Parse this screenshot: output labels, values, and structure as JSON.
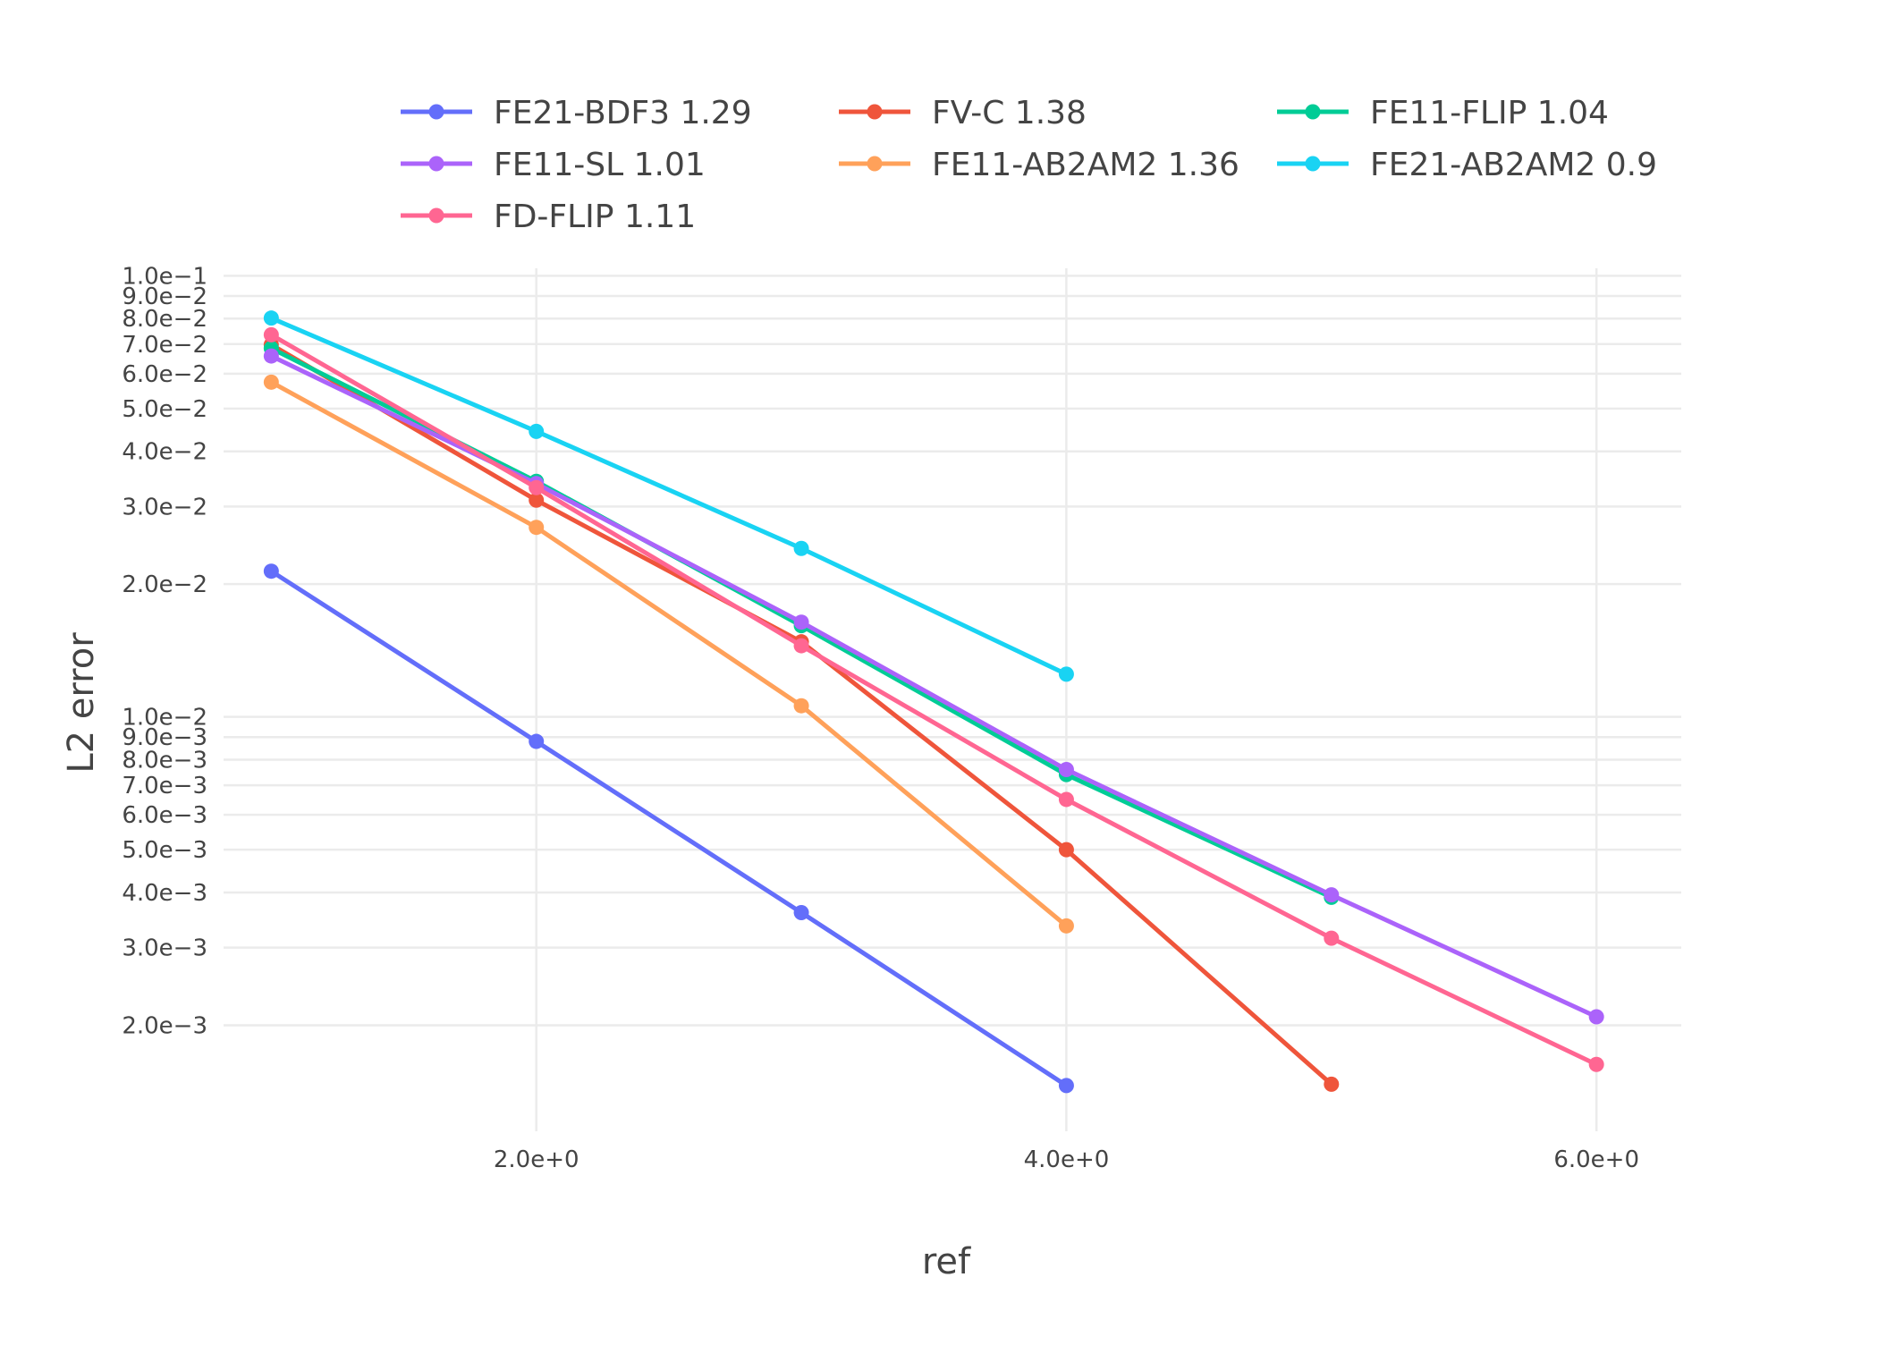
{
  "chart_data": {
    "type": "line",
    "xlabel": "ref",
    "ylabel": "L2 error",
    "x_scale": "linear",
    "y_scale": "log",
    "xlim": [
      0.82,
      6.32
    ],
    "ylim": [
      0.00115,
      0.104
    ],
    "grid": true,
    "legend_position": "top",
    "x_ticks": [
      {
        "value": 2,
        "label": "2.0e+0"
      },
      {
        "value": 4,
        "label": "4.0e+0"
      },
      {
        "value": 6,
        "label": "6.0e+0"
      }
    ],
    "y_ticks": [
      {
        "value": 0.1,
        "label": "1.0e−1"
      },
      {
        "value": 0.09,
        "label": "9.0e−2"
      },
      {
        "value": 0.08,
        "label": "8.0e−2"
      },
      {
        "value": 0.07,
        "label": "7.0e−2"
      },
      {
        "value": 0.06,
        "label": "6.0e−2"
      },
      {
        "value": 0.05,
        "label": "5.0e−2"
      },
      {
        "value": 0.04,
        "label": "4.0e−2"
      },
      {
        "value": 0.03,
        "label": "3.0e−2"
      },
      {
        "value": 0.02,
        "label": "2.0e−2"
      },
      {
        "value": 0.01,
        "label": "1.0e−2"
      },
      {
        "value": 0.009,
        "label": "9.0e−3"
      },
      {
        "value": 0.008,
        "label": "8.0e−3"
      },
      {
        "value": 0.007,
        "label": "7.0e−3"
      },
      {
        "value": 0.006,
        "label": "6.0e−3"
      },
      {
        "value": 0.005,
        "label": "5.0e−3"
      },
      {
        "value": 0.004,
        "label": "4.0e−3"
      },
      {
        "value": 0.003,
        "label": "3.0e−3"
      },
      {
        "value": 0.002,
        "label": "2.0e−3"
      }
    ],
    "series": [
      {
        "name": "FE21-BDF3 1.29",
        "color": "#636efa",
        "x": [
          1,
          2,
          3,
          4
        ],
        "y": [
          0.0214,
          0.0088,
          0.0036,
          0.00146
        ]
      },
      {
        "name": "FV-C 1.38",
        "color": "#ef553b",
        "x": [
          1,
          2,
          3,
          4,
          5
        ],
        "y": [
          0.0698,
          0.031,
          0.0148,
          0.005,
          0.00147
        ]
      },
      {
        "name": "FE11-FLIP 1.04",
        "color": "#00cc96",
        "x": [
          1,
          2,
          3,
          4,
          5
        ],
        "y": [
          0.0685,
          0.0342,
          0.0161,
          0.0074,
          0.0039
        ]
      },
      {
        "name": "FE11-SL 1.01",
        "color": "#ab63fa",
        "x": [
          1,
          2,
          3,
          4,
          5,
          6
        ],
        "y": [
          0.0658,
          0.0338,
          0.0164,
          0.0076,
          0.00395,
          0.00209
        ]
      },
      {
        "name": "FE11-AB2AM2 1.36",
        "color": "#ffa15a",
        "x": [
          1,
          2,
          3,
          4
        ],
        "y": [
          0.0574,
          0.0269,
          0.0106,
          0.00336
        ]
      },
      {
        "name": "FE21-AB2AM2 0.9",
        "color": "#19d3f3",
        "x": [
          1,
          2,
          3,
          4
        ],
        "y": [
          0.0802,
          0.0444,
          0.0241,
          0.0125
        ]
      },
      {
        "name": "FD-FLIP 1.11",
        "color": "#ff6692",
        "x": [
          1,
          2,
          3,
          4,
          5,
          6
        ],
        "y": [
          0.0735,
          0.0331,
          0.0145,
          0.0065,
          0.00315,
          0.00163
        ]
      }
    ]
  }
}
